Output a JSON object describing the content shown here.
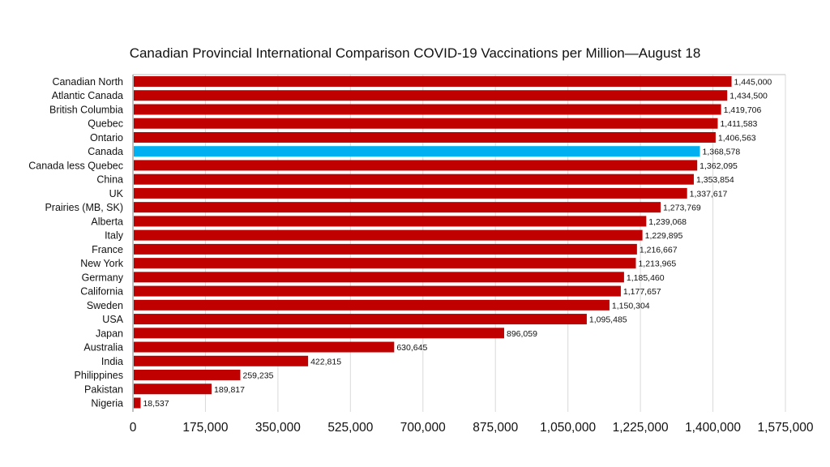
{
  "chart_data": {
    "type": "bar",
    "orientation": "horizontal",
    "title": "Canadian Provincial International Comparison COVID-19 Vaccinations per Million—August 18",
    "xlabel": "",
    "ylabel": "",
    "xlim": [
      0,
      1575000
    ],
    "xticks": [
      0,
      175000,
      350000,
      525000,
      700000,
      875000,
      1050000,
      1225000,
      1400000,
      1575000
    ],
    "xtick_labels": [
      "0",
      "175,000",
      "350,000",
      "525,000",
      "700,000",
      "875,000",
      "1,050,000",
      "1,225,000",
      "1,400,000",
      "1,575,000"
    ],
    "grid": "vertical",
    "legend": "none",
    "colors": {
      "default": "#C00000",
      "highlight": "#00B0F0"
    },
    "highlight_category": "Canada",
    "categories": [
      "Canadian North",
      "Atlantic Canada",
      "British Columbia",
      "Quebec",
      "Ontario",
      "Canada",
      "Canada less Quebec",
      "China",
      "UK",
      "Prairies (MB, SK)",
      "Alberta",
      "Italy",
      "France",
      "New York",
      "Germany",
      "California",
      "Sweden",
      "USA",
      "Japan",
      "Australia",
      "India",
      "Philippines",
      "Pakistan",
      "Nigeria"
    ],
    "values": [
      1445000,
      1434500,
      1419706,
      1411583,
      1406563,
      1368578,
      1362095,
      1353854,
      1337617,
      1273769,
      1239068,
      1229895,
      1216667,
      1213965,
      1185460,
      1177657,
      1150304,
      1095485,
      896059,
      630645,
      422815,
      259235,
      189817,
      18537
    ],
    "value_labels": [
      "1,445,000",
      "1,434,500",
      "1,419,706",
      "1,411,583",
      "1,406,563",
      "1,368,578",
      "1,362,095",
      "1,353,854",
      "1,337,617",
      "1,273,769",
      "1,239,068",
      "1,229,895",
      "1,216,667",
      "1,213,965",
      "1,185,460",
      "1,177,657",
      "1,150,304",
      "1,095,485",
      "896,059",
      "630,645",
      "422,815",
      "259,235",
      "189,817",
      "18,537"
    ]
  }
}
